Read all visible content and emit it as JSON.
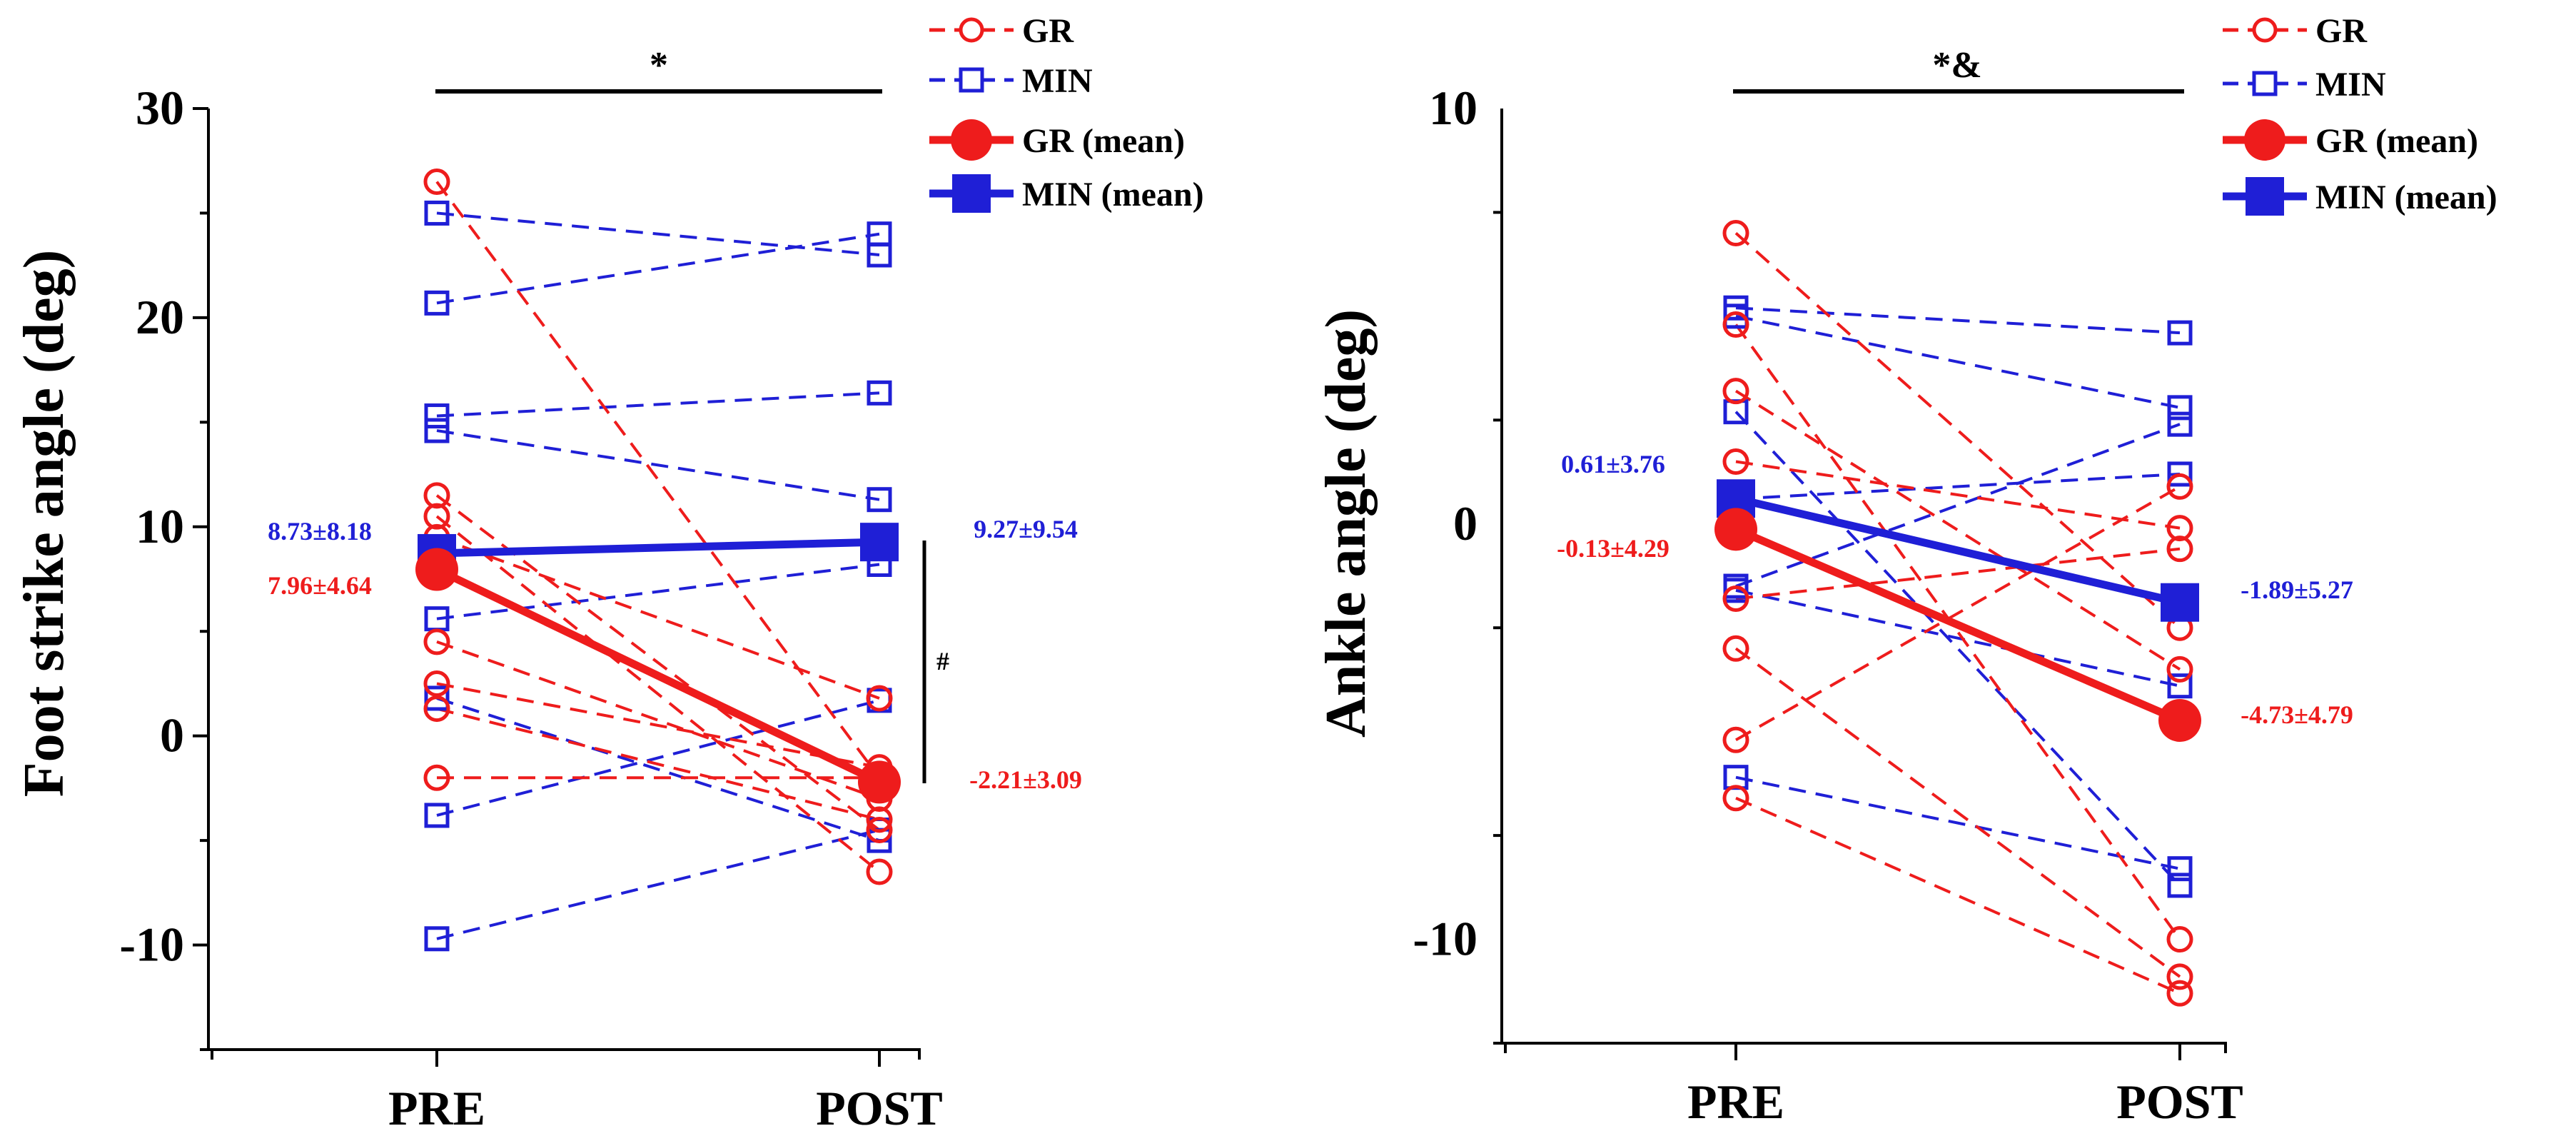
{
  "legend_labels": {
    "gr_ind": "GR",
    "min_ind": "MIN",
    "gr_mean": "GR (mean)",
    "min_mean": "MIN (mean)"
  },
  "colors": {
    "gr": "#ee1c1c",
    "min": "#1f1fd6",
    "axis": "#000000"
  },
  "chart_data": [
    {
      "type": "line",
      "ylabel": "Foot strike angle (deg)",
      "categories": [
        "PRE",
        "POST"
      ],
      "ylim": [
        -15,
        30
      ],
      "yticks": [
        -10,
        0,
        10,
        20,
        30
      ],
      "gr_individual": [
        [
          26.5,
          -2.0
        ],
        [
          11.5,
          -4.5
        ],
        [
          10.5,
          -6.5
        ],
        [
          9.5,
          1.8
        ],
        [
          4.5,
          -3.0
        ],
        [
          2.5,
          -1.5
        ],
        [
          1.3,
          -4.0
        ],
        [
          -2.0,
          -2.0
        ]
      ],
      "min_individual": [
        [
          25.0,
          23.0
        ],
        [
          20.7,
          24.0
        ],
        [
          15.3,
          16.4
        ],
        [
          14.6,
          11.3
        ],
        [
          5.6,
          8.2
        ],
        [
          1.8,
          -5.0
        ],
        [
          -3.8,
          1.7
        ],
        [
          -9.7,
          -4.5
        ]
      ],
      "gr_mean": [
        7.96,
        -2.21
      ],
      "min_mean": [
        8.73,
        9.27
      ],
      "labels": {
        "min_pre": "8.73±8.18",
        "gr_pre": "7.96±4.64",
        "min_post": "9.27±9.54",
        "gr_post": "-2.21±3.09"
      },
      "sig_top": "*",
      "sig_side": "#"
    },
    {
      "type": "line",
      "ylabel": "Ankle angle (deg)",
      "categories": [
        "PRE",
        "POST"
      ],
      "ylim": [
        -12.5,
        10
      ],
      "yticks": [
        -10,
        0,
        10
      ],
      "gr_individual": [
        [
          7.0,
          -2.5
        ],
        [
          4.8,
          -10.0
        ],
        [
          3.2,
          -3.5
        ],
        [
          -1.8,
          -0.6
        ],
        [
          -3.0,
          -10.9
        ],
        [
          -5.2,
          0.9
        ],
        [
          -6.6,
          -11.3
        ],
        [
          1.5,
          -0.1
        ]
      ],
      "min_individual": [
        [
          5.2,
          4.6
        ],
        [
          5.0,
          2.8
        ],
        [
          2.7,
          -8.7
        ],
        [
          -1.5,
          2.4
        ],
        [
          -1.6,
          -3.9
        ],
        [
          -6.1,
          -8.3
        ],
        [
          0.6,
          1.2
        ]
      ],
      "gr_mean": [
        -0.13,
        -4.73
      ],
      "min_mean": [
        0.61,
        -1.89
      ],
      "labels": {
        "min_pre": "0.61±3.76",
        "gr_pre": "-0.13±4.29",
        "min_post": "-1.89±5.27",
        "gr_post": "-4.73±4.79"
      },
      "sig_top": "*&"
    }
  ]
}
